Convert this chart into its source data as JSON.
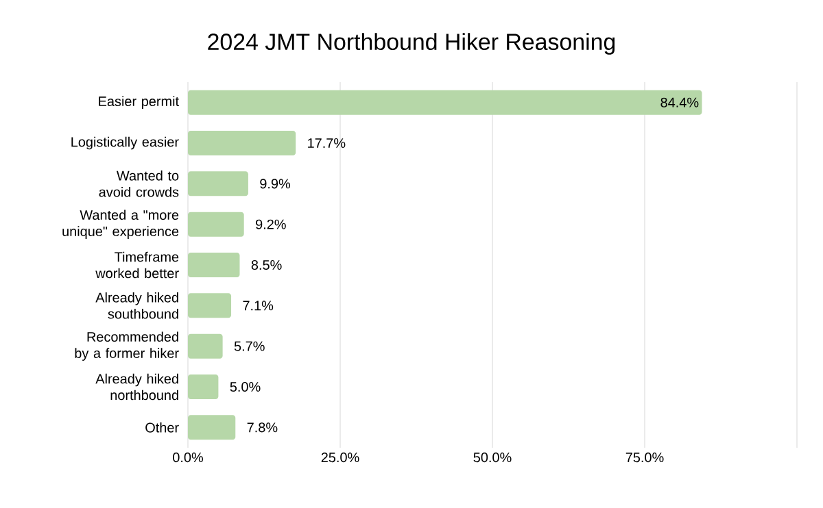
{
  "chart_data": {
    "type": "bar",
    "orientation": "horizontal",
    "title": "2024 JMT Northbound Hiker Reasoning",
    "categories": [
      "Easier permit",
      "Logistically easier",
      "Wanted to avoid crowds",
      "Wanted a \"more unique\" experience",
      "Timeframe worked better",
      "Already hiked southbound",
      "Recommended by a former hiker",
      "Already hiked northbound",
      "Other"
    ],
    "values": [
      84.4,
      17.7,
      9.9,
      9.2,
      8.5,
      7.1,
      5.7,
      5.0,
      7.8
    ],
    "value_labels": [
      "84.4%",
      "17.7%",
      "9.9%",
      "9.2%",
      "8.5%",
      "7.1%",
      "5.7%",
      "5.0%",
      "7.8%"
    ],
    "color": "#b6d7a8",
    "xlim": [
      0,
      100
    ],
    "xticks": [
      {
        "value": 0,
        "label": "0.0%"
      },
      {
        "value": 25,
        "label": "25.0%"
      },
      {
        "value": 50,
        "label": "50.0%"
      },
      {
        "value": 75,
        "label": "75.0%"
      },
      {
        "value": 100,
        "label": null
      }
    ],
    "grid": "x"
  }
}
